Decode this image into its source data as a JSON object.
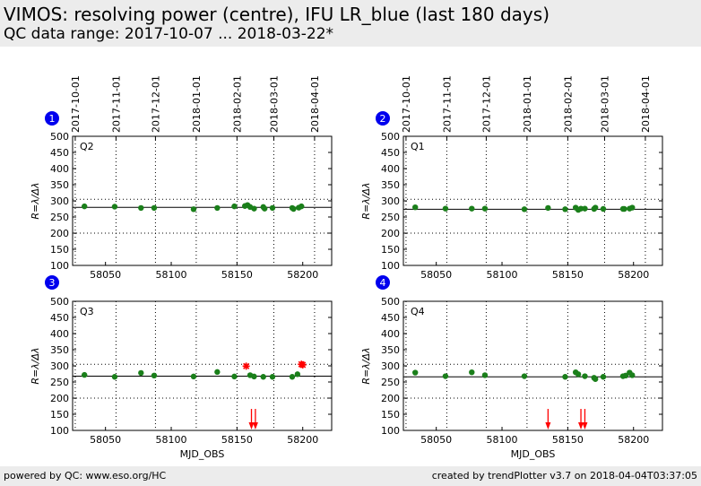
{
  "title": "VIMOS: resolving power (centre), IFU LR_blue (last 180 days)",
  "subtitle": "QC data range: 2017-10-07 ... 2018-03-22*",
  "footer": {
    "left": "powered by QC: www.eso.org/HC",
    "right": "created by trendPlotter v3.7 on 2018-04-04T03:37:05"
  },
  "colors": {
    "point": "#1a7f1a",
    "outlier": "#ff0000",
    "badge": "#0000ee",
    "header_bg": "#ececec"
  },
  "chart_data": [
    {
      "type": "scatter",
      "panel": 1,
      "label": "Q2",
      "ylabel": "R=λ/Δλ",
      "xlabel": "",
      "xlim": [
        58025,
        58222
      ],
      "ylim": [
        100,
        500
      ],
      "xticks": [
        58050,
        58100,
        58150,
        58200
      ],
      "yticks": [
        100,
        150,
        200,
        250,
        300,
        350,
        400,
        450,
        500
      ],
      "date_ticks": [
        {
          "mjd": 58027,
          "label": "2017-10-01"
        },
        {
          "mjd": 58058,
          "label": "2017-11-01"
        },
        {
          "mjd": 58088,
          "label": "2017-12-01"
        },
        {
          "mjd": 58119,
          "label": "2018-01-01"
        },
        {
          "mjd": 58150,
          "label": "2018-02-01"
        },
        {
          "mjd": 58178,
          "label": "2018-03-01"
        },
        {
          "mjd": 58209,
          "label": "2018-04-01"
        }
      ],
      "reference": 280,
      "dotted": [
        200,
        305
      ],
      "x": [
        58034,
        58057,
        58077,
        58087,
        58117,
        58135,
        58148,
        58156,
        58158,
        58160,
        58163,
        58170,
        58171,
        58177,
        58192,
        58193,
        58197,
        58199
      ],
      "y": [
        283,
        282,
        278,
        278,
        274,
        278,
        283,
        284,
        287,
        281,
        276,
        281,
        276,
        278,
        278,
        275,
        279,
        283
      ],
      "outliers": [],
      "low_arrows": []
    },
    {
      "type": "scatter",
      "panel": 2,
      "label": "Q1",
      "ylabel": "R=λ/Δλ",
      "xlabel": "",
      "xlim": [
        58025,
        58222
      ],
      "ylim": [
        100,
        500
      ],
      "xticks": [
        58050,
        58100,
        58150,
        58200
      ],
      "yticks": [
        100,
        150,
        200,
        250,
        300,
        350,
        400,
        450,
        500
      ],
      "date_ticks": [
        {
          "mjd": 58027,
          "label": "2017-10-01"
        },
        {
          "mjd": 58058,
          "label": "2017-11-01"
        },
        {
          "mjd": 58088,
          "label": "2017-12-01"
        },
        {
          "mjd": 58119,
          "label": "2018-01-01"
        },
        {
          "mjd": 58150,
          "label": "2018-02-01"
        },
        {
          "mjd": 58178,
          "label": "2018-03-01"
        },
        {
          "mjd": 58209,
          "label": "2018-04-01"
        }
      ],
      "reference": 274,
      "dotted": [
        200,
        305
      ],
      "x": [
        58034,
        58057,
        58077,
        58087,
        58117,
        58135,
        58148,
        58156,
        58158,
        58160,
        58163,
        58170,
        58171,
        58177,
        58192,
        58193,
        58197,
        58199
      ],
      "y": [
        280,
        276,
        276,
        276,
        274,
        278,
        274,
        279,
        272,
        276,
        276,
        275,
        279,
        275,
        275,
        275,
        276,
        279
      ],
      "outliers": [],
      "low_arrows": []
    },
    {
      "type": "scatter",
      "panel": 3,
      "label": "Q3",
      "ylabel": "R=λ/Δλ",
      "xlabel": "MJD_OBS",
      "xlim": [
        58025,
        58222
      ],
      "ylim": [
        100,
        500
      ],
      "xticks": [
        58050,
        58100,
        58150,
        58200
      ],
      "yticks": [
        100,
        150,
        200,
        250,
        300,
        350,
        400,
        450,
        500
      ],
      "date_ticks": [],
      "reference": 268,
      "dotted": [
        200,
        305
      ],
      "x": [
        58034,
        58057,
        58077,
        58087,
        58117,
        58135,
        58148,
        58160,
        58163,
        58170,
        58177,
        58192,
        58196
      ],
      "y": [
        272,
        266,
        278,
        270,
        267,
        281,
        267,
        271,
        267,
        266,
        266,
        266,
        274
      ],
      "outliers": [
        {
          "x": 58157,
          "y": 299
        },
        {
          "x": 58199,
          "y": 305
        },
        {
          "x": 58200,
          "y": 303
        }
      ],
      "low_arrows": [
        58161,
        58164
      ]
    },
    {
      "type": "scatter",
      "panel": 4,
      "label": "Q4",
      "ylabel": "R=λ/Δλ",
      "xlabel": "MJD_OBS",
      "xlim": [
        58025,
        58222
      ],
      "ylim": [
        100,
        500
      ],
      "xticks": [
        58050,
        58100,
        58150,
        58200
      ],
      "yticks": [
        100,
        150,
        200,
        250,
        300,
        350,
        400,
        450,
        500
      ],
      "date_ticks": [],
      "reference": 266,
      "dotted": [
        200,
        305
      ],
      "x": [
        58034,
        58057,
        58077,
        58087,
        58117,
        58148,
        58156,
        58158,
        58163,
        58170,
        58171,
        58177,
        58192,
        58194,
        58197,
        58199
      ],
      "y": [
        279,
        268,
        280,
        271,
        268,
        266,
        280,
        274,
        268,
        263,
        259,
        266,
        268,
        270,
        279,
        271
      ],
      "outliers": [],
      "low_arrows": [
        58135,
        58160,
        58163
      ]
    }
  ]
}
